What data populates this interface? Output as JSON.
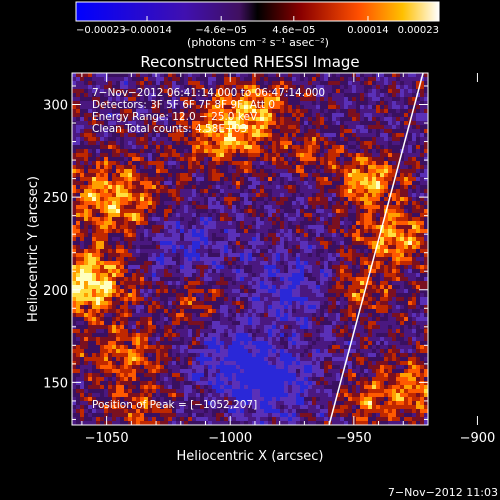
{
  "chart_data": {
    "type": "heatmap",
    "title": "Reconstructed RHESSI Image",
    "xlabel": "Heliocentric X (arcsec)",
    "ylabel": "Heliocentric Y (arcsec)",
    "xlim": [
      -1064,
      -920
    ],
    "ylim": [
      127,
      317
    ],
    "x_ticks": [
      -1050,
      -1000,
      -950,
      -900
    ],
    "x_tick_labels": [
      "−1050",
      "−1000",
      "−950",
      "−900"
    ],
    "y_ticks": [
      150,
      200,
      250,
      300
    ],
    "y_tick_labels": [
      "150",
      "200",
      "250",
      "300"
    ],
    "colorbar": {
      "range": [
        -0.00023,
        0.00023
      ],
      "ticks": [
        -0.00023,
        -0.00014,
        -4.6e-05,
        4.6e-05,
        0.00014,
        0.00023
      ],
      "tick_labels": [
        "−0.00023",
        "−0.00014",
        "−4.6e−05",
        "4.6e−05",
        "0.00014",
        "0.00023"
      ],
      "unit_label": "(photons cm⁻² s⁻¹ asec⁻²)"
    },
    "annotations": {
      "time_range": "7−Nov−2012 06:41:14.000 to 06:47:14.000",
      "detectors": "Detectors: 3F 5F 6F 7F 8F 9F, Att 0",
      "energy_range": "Energy Range: 12.0 − 25.0 keV",
      "clean_counts": "Clean     Total counts: 4.58E+03",
      "peak_position": "Position of Peak = [−1052,207]"
    },
    "limb_line": {
      "x": [
        -960,
        -922
      ],
      "y": [
        127,
        317
      ]
    },
    "peak": {
      "x": -1052,
      "y": 207
    },
    "legend": "none",
    "grid": false
  },
  "footer": {
    "timestamp": "7−Nov−2012 11:03"
  }
}
